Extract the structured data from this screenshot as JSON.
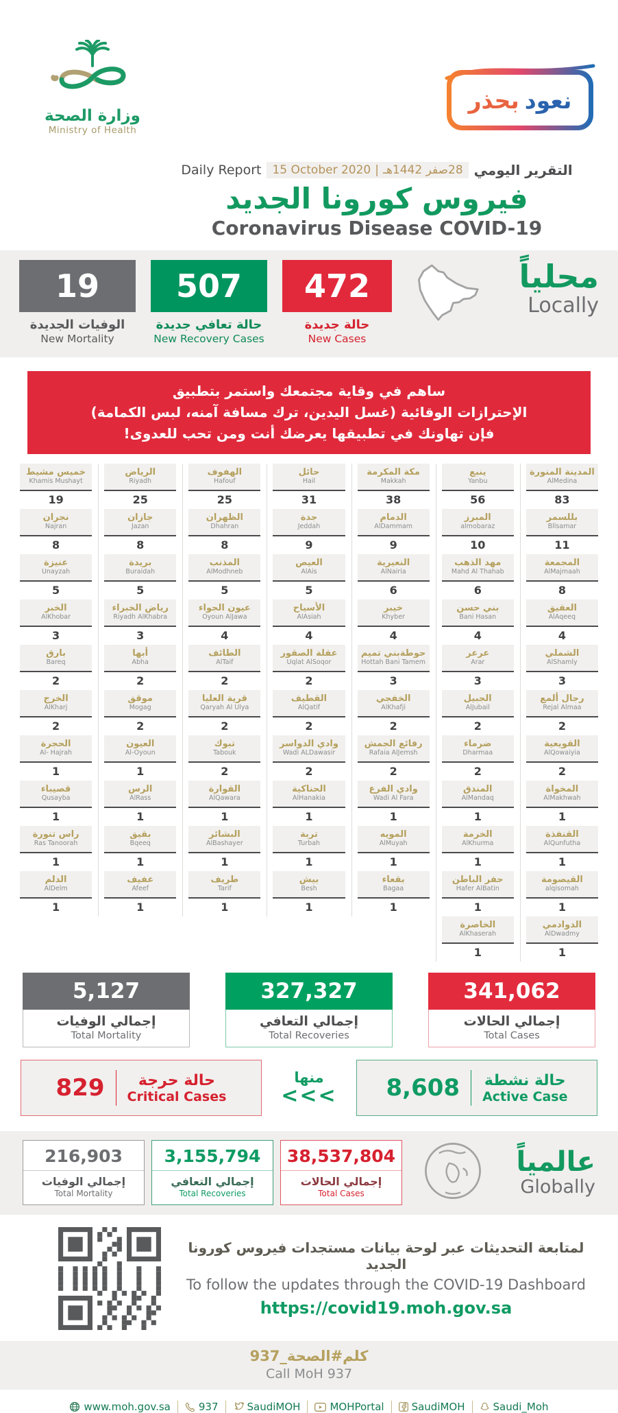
{
  "colors": {
    "green": "#12995f",
    "red": "#e02a3c",
    "gray": "#6d6e71",
    "gold": "#b5a05e",
    "light_bg": "#f0efed"
  },
  "header": {
    "logo": {
      "title_ar": "وزارة الصحة",
      "title_en": "Ministry of Health"
    },
    "badge": {
      "word_right": "نعود",
      "word_left": "بحذر"
    },
    "report": {
      "label_en": "Daily Report",
      "date_en": "15 October 2020",
      "divider": "|",
      "date_ar": "28صفر 1442هـ",
      "label_ar": "التقرير اليومي"
    },
    "title_ar": "فيروس كورونا الجديد",
    "title_en": "Coronavirus Disease COVID-19"
  },
  "locally": {
    "heading_ar": "محلياً",
    "heading_en": "Locally",
    "stats": [
      {
        "value": "19",
        "label_ar": "الوفيات الجديدة",
        "label_en": "New Mortality"
      },
      {
        "value": "507",
        "label_ar": "حالة تعافي جديدة",
        "label_en": "New Recovery Cases"
      },
      {
        "value": "472",
        "label_ar": "حالة جديدة",
        "label_en": "New Cases"
      }
    ]
  },
  "banner": {
    "line1": "ساهم في وقاية مجتمعك واستمر بتطبيق",
    "line2": "الإحترازات الوقائية (غسل اليدين، ترك مسافة آمنه، لبس الكمامة)",
    "line3": "فإن تهاونك في تطبيقها يعرضك أنت ومن تحب للعدوى!"
  },
  "regions": {
    "rows": [
      [
        {
          "ar": "خميس مشيط",
          "en": "Khamis Mushayt",
          "value": "19"
        },
        {
          "ar": "الرياض",
          "en": "Riyadh",
          "value": "25"
        },
        {
          "ar": "الهفوف",
          "en": "Hafouf",
          "value": "25"
        },
        {
          "ar": "حائل",
          "en": "Hail",
          "value": "31"
        },
        {
          "ar": "مكة المكرمة",
          "en": "Makkah",
          "value": "38"
        },
        {
          "ar": "ينبع",
          "en": "Yanbu",
          "value": "56"
        },
        {
          "ar": "المدينة المنورة",
          "en": "AlMedina",
          "value": "83"
        }
      ],
      [
        {
          "ar": "نجران",
          "en": "Najran",
          "value": "8"
        },
        {
          "ar": "جازان",
          "en": "Jazan",
          "value": "8"
        },
        {
          "ar": "الظهران",
          "en": "Dhahran",
          "value": "8"
        },
        {
          "ar": "جدة",
          "en": "Jeddah",
          "value": "9"
        },
        {
          "ar": "الدمام",
          "en": "AlDammam",
          "value": "9"
        },
        {
          "ar": "المبرز",
          "en": "almobaraz",
          "value": "10"
        },
        {
          "ar": "بللسمر",
          "en": "Bllsamar",
          "value": "11"
        }
      ],
      [
        {
          "ar": "عنيزة",
          "en": "Unayzah",
          "value": "5"
        },
        {
          "ar": "بريدة",
          "en": "Buraidah",
          "value": "5"
        },
        {
          "ar": "المذنب",
          "en": "AlModhneb",
          "value": "5"
        },
        {
          "ar": "العيص",
          "en": "AlAis",
          "value": "5"
        },
        {
          "ar": "النعيرية",
          "en": "AlNairia",
          "value": "6"
        },
        {
          "ar": "مهد الذهب",
          "en": "Mahd Al Thahab",
          "value": "6"
        },
        {
          "ar": "المجمعة",
          "en": "AlMajmaah",
          "value": "8"
        }
      ],
      [
        {
          "ar": "الخبر",
          "en": "AlKhobar",
          "value": "3"
        },
        {
          "ar": "رياض الخبراء",
          "en": "Riyadh AlKhabra",
          "value": "3"
        },
        {
          "ar": "عيون الجواء",
          "en": "Oyoun AlJawa",
          "value": "4"
        },
        {
          "ar": "الأسياح",
          "en": "AlAsiah",
          "value": "4"
        },
        {
          "ar": "خيبر",
          "en": "Khyber",
          "value": "4"
        },
        {
          "ar": "بني حسن",
          "en": "Bani Hasan",
          "value": "4"
        },
        {
          "ar": "العقيق",
          "en": "AlAqeeq",
          "value": "4"
        }
      ],
      [
        {
          "ar": "بارق",
          "en": "Bareq",
          "value": "2"
        },
        {
          "ar": "أبها",
          "en": "Abha",
          "value": "2"
        },
        {
          "ar": "الطائف",
          "en": "AlTaif",
          "value": "2"
        },
        {
          "ar": "عقلة الصقور",
          "en": "Uqlat AlSoqor",
          "value": "2"
        },
        {
          "ar": "حوطةبني تميم",
          "en": "Hottah Bani Tamem",
          "value": "3"
        },
        {
          "ar": "عرعر",
          "en": "Arar",
          "value": "3"
        },
        {
          "ar": "الشملي",
          "en": "AlShamly",
          "value": "3"
        }
      ],
      [
        {
          "ar": "الخرج",
          "en": "AlKharj",
          "value": "2"
        },
        {
          "ar": "موقق",
          "en": "Mogag",
          "value": "2"
        },
        {
          "ar": "قرية العليا",
          "en": "Qaryah Al Ulya",
          "value": "2"
        },
        {
          "ar": "القطيف",
          "en": "AlQatif",
          "value": "2"
        },
        {
          "ar": "الخفجي",
          "en": "AlKhafji",
          "value": "2"
        },
        {
          "ar": "الجبيل",
          "en": "AlJubail",
          "value": "2"
        },
        {
          "ar": "رجال ألمع",
          "en": "Rejal Almaa",
          "value": "2"
        }
      ],
      [
        {
          "ar": "الحجرة",
          "en": "Al- Hajrah",
          "value": "1"
        },
        {
          "ar": "العيون",
          "en": "Al-Oyoun",
          "value": "1"
        },
        {
          "ar": "تبوك",
          "en": "Tabouk",
          "value": "2"
        },
        {
          "ar": "وادي الدواسر",
          "en": "Wadi ALDawasir",
          "value": "2"
        },
        {
          "ar": "رفائع الجمش",
          "en": "Rafaia AlJemsh",
          "value": "2"
        },
        {
          "ar": "ضرماء",
          "en": "Dharmaa",
          "value": "2"
        },
        {
          "ar": "القويعية",
          "en": "AlQowaiyia",
          "value": "2"
        }
      ],
      [
        {
          "ar": "قصيباء",
          "en": "Qusayba",
          "value": "1"
        },
        {
          "ar": "الرس",
          "en": "AlRass",
          "value": "1"
        },
        {
          "ar": "القوارة",
          "en": "AlQawara",
          "value": "1"
        },
        {
          "ar": "الحناكية",
          "en": "AlHanakia",
          "value": "1"
        },
        {
          "ar": "وادي الفرع",
          "en": "Wadi Al Fara",
          "value": "1"
        },
        {
          "ar": "المندق",
          "en": "AlMandaq",
          "value": "1"
        },
        {
          "ar": "المخواة",
          "en": "AlMakhwah",
          "value": "1"
        }
      ],
      [
        {
          "ar": "راس تنورة",
          "en": "Ras Tanoorah",
          "value": "1"
        },
        {
          "ar": "بقيق",
          "en": "Bqeeq",
          "value": "1"
        },
        {
          "ar": "البشائر",
          "en": "AlBashayer",
          "value": "1"
        },
        {
          "ar": "تربة",
          "en": "Turbah",
          "value": "1"
        },
        {
          "ar": "المويه",
          "en": "AlMuyah",
          "value": "1"
        },
        {
          "ar": "الخرمة",
          "en": "AlKhurma",
          "value": "1"
        },
        {
          "ar": "القنفذة",
          "en": "AlQunfutha",
          "value": "1"
        }
      ],
      [
        {
          "ar": "الدلم",
          "en": "AlDelm",
          "value": "1"
        },
        {
          "ar": "عفيف",
          "en": "Afeef",
          "value": "1"
        },
        {
          "ar": "طريف",
          "en": "Tarif",
          "value": "1"
        },
        {
          "ar": "بيش",
          "en": "Besh",
          "value": "1"
        },
        {
          "ar": "بقعاء",
          "en": "Bagaa",
          "value": "1"
        },
        {
          "ar": "حفر الباطن",
          "en": "Hafer AlBatin",
          "value": "1"
        },
        {
          "ar": "القيصومة",
          "en": "alqisomah",
          "value": "1"
        }
      ],
      [
        null,
        null,
        null,
        null,
        null,
        {
          "ar": "الخاصرة",
          "en": "AlKhaserah",
          "value": "1"
        },
        {
          "ar": "الدوادمي",
          "en": "AlDwadmy",
          "value": "1"
        }
      ]
    ]
  },
  "totals": [
    {
      "value": "5,127",
      "label_ar": "إجمالي الوفيات",
      "label_en": "Total Mortality"
    },
    {
      "value": "327,327",
      "label_ar": "إجمالي التعافي",
      "label_en": "Total Recoveries"
    },
    {
      "value": "341,062",
      "label_ar": "إجمالي الحالات",
      "label_en": "Total Cases"
    }
  ],
  "cases_row": {
    "critical": {
      "value": "829",
      "label_ar": "حالة حرجة",
      "label_en": "Critical Cases"
    },
    "of_which": "منها",
    "arrows": "<<<",
    "active": {
      "value": "8,608",
      "label_ar": "حالة نشطة",
      "label_en": "Active Case"
    }
  },
  "globally": {
    "heading_ar": "عالمياً",
    "heading_en": "Globally",
    "stats": [
      {
        "value": "216,903",
        "label_ar": "إجمالي الوفيات",
        "label_en": "Total Mortality"
      },
      {
        "value": "3,155,794",
        "label_ar": "إجمالي التعافي",
        "label_en": "Total Recoveries"
      },
      {
        "value": "38,537,804",
        "label_ar": "إجمالي الحالات",
        "label_en": "Total Cases"
      }
    ]
  },
  "dashboard": {
    "line_ar": "لمتابعة التحديثات عبر لوحة بيانات مستجدات فيروس كورونا الجديد",
    "line_en": "To follow the updates through the COVID-19 Dashboard",
    "url": "https://covid19.moh.gov.sa"
  },
  "call": {
    "ar": "كلم#الصحة_937",
    "en": "Call MoH 937"
  },
  "footer": {
    "items": [
      {
        "icon": "globe-icon",
        "text": "www.moh.gov.sa"
      },
      {
        "icon": "phone-icon",
        "text": "937"
      },
      {
        "icon": "twitter-icon",
        "text": "SaudiMOH"
      },
      {
        "icon": "youtube-icon",
        "text": "MOHPortal"
      },
      {
        "icon": "facebook-icon",
        "text": "SaudiMOH"
      },
      {
        "icon": "snapchat-icon",
        "text": "Saudi_Moh"
      }
    ]
  }
}
